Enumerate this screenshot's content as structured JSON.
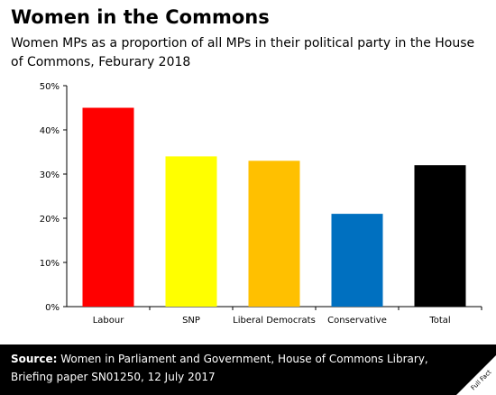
{
  "header": {
    "title": "Women in the Commons",
    "subtitle": "Women MPs as a proportion of all MPs in their political party in the House of Commons, Feburary 2018"
  },
  "footer": {
    "source_label": "Source:",
    "source_text": "Women in Parliament and Government, House of Commons Library, Briefing paper SN01250, 12 July 2017",
    "logo_text": "Full Fact"
  },
  "chart_data": {
    "type": "bar",
    "title": "Women in the Commons",
    "subtitle": "Women MPs as a proportion of all MPs in their political party in the House of Commons, Feburary 2018",
    "xlabel": "",
    "ylabel": "",
    "categories": [
      "Labour",
      "SNP",
      "Liberal Democrats",
      "Conservative",
      "Total"
    ],
    "values": [
      45,
      34,
      33,
      21,
      32
    ],
    "colors": [
      "#ff0000",
      "#ffff00",
      "#ffc000",
      "#0070c0",
      "#000000"
    ],
    "ylim": [
      0,
      50
    ],
    "yticks": [
      0,
      10,
      20,
      30,
      40,
      50
    ],
    "ytick_labels": [
      "0%",
      "10%",
      "20%",
      "30%",
      "40%",
      "50%"
    ],
    "grid": false,
    "legend": "none"
  }
}
